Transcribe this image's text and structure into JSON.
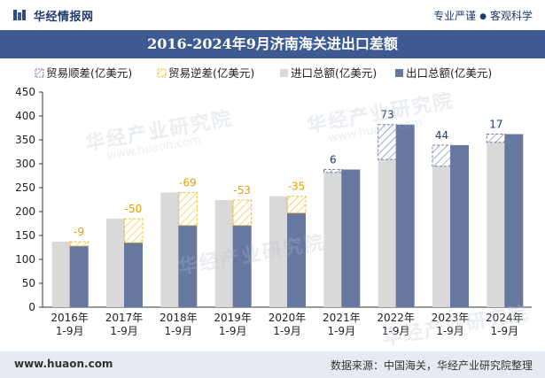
{
  "header": {
    "brand_name": "华经情报网",
    "tagline_a": "专业严谨",
    "tagline_sep": "●",
    "tagline_b": "客观科学"
  },
  "title": "2016-2024年9月济南海关进出口差额",
  "footer": {
    "url": "www.huaon.com",
    "source": "数据来源：中国海关，华经产业研究院整理"
  },
  "watermark": {
    "text": "华经产业研究院",
    "url": "www.huaon.com"
  },
  "colors": {
    "import": "#d9d9d9",
    "export": "#6678a0",
    "surplus_border": "#6d7fa6",
    "deficit_border": "#f2c12e",
    "label_surplus": "#1f3a6e",
    "label_deficit": "#e0a100"
  },
  "chart_data": {
    "type": "bar",
    "categories": [
      "2016年\n1-9月",
      "2017年\n1-9月",
      "2018年\n1-9月",
      "2019年\n1-9月",
      "2020年\n1-9月",
      "2021年\n1-9月",
      "2022年\n1-9月",
      "2023年\n1-9月",
      "2024年\n1-9月"
    ],
    "series": [
      {
        "name": "进口总额(亿美元)",
        "values": [
          137,
          185,
          240,
          224,
          232,
          282,
          309,
          295,
          345
        ]
      },
      {
        "name": "出口总额(亿美元)",
        "values": [
          128,
          135,
          171,
          171,
          197,
          288,
          382,
          339,
          362
        ]
      }
    ],
    "balance": {
      "surplus_name": "贸易顺差(亿美元)",
      "deficit_name": "贸易逆差(亿美元)",
      "labels": [
        "-9",
        "-50",
        "-69",
        "-53",
        "-35",
        "6",
        "73",
        "44",
        "17"
      ],
      "values": [
        -9,
        -50,
        -69,
        -53,
        -35,
        6,
        73,
        44,
        17
      ]
    },
    "legend": [
      "贸易顺差(亿美元)",
      "贸易逆差(亿美元)",
      "进口总额(亿美元)",
      "出口总额(亿美元)"
    ],
    "legend_position": "top",
    "ylim": [
      0,
      450
    ],
    "yticks": [
      "0",
      "50",
      "100",
      "150",
      "200",
      "250",
      "300",
      "350",
      "400",
      "450"
    ],
    "xlabel": "",
    "ylabel": ""
  }
}
